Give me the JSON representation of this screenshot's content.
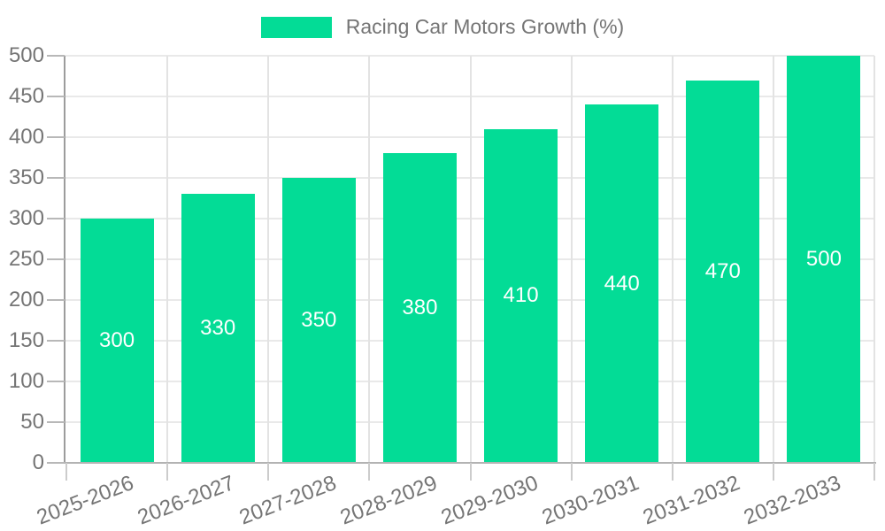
{
  "chart_data": {
    "type": "bar",
    "title": "Racing Car Motors Growth (%)",
    "categories": [
      "2025-2026",
      "2026-2027",
      "2027-2028",
      "2028-2029",
      "2029-2030",
      "2030-2031",
      "2031-2032",
      "2032-2033"
    ],
    "values": [
      300,
      330,
      350,
      380,
      410,
      440,
      470,
      500
    ],
    "series": [
      {
        "name": "Racing Car Motors Growth (%)",
        "values": [
          300,
          330,
          350,
          380,
          410,
          440,
          470,
          500
        ]
      }
    ],
    "xlabel": "",
    "ylabel": "",
    "ylim": [
      0,
      500
    ],
    "yticks": [
      0,
      50,
      100,
      150,
      200,
      250,
      300,
      350,
      400,
      450,
      500
    ],
    "grid": true,
    "legend_position": "top-center",
    "bar_labels_visible": true,
    "bar_label_position": "middle-of-bar",
    "colors": {
      "bar": "#03DC96",
      "bar_label": "#FFFFFF",
      "axis_text": "#757575",
      "legend_text": "#757575",
      "y_axis_line": "#9C9C9C",
      "x_axis_line": "#B3B3B3",
      "h_gridline": "#E9E9E9",
      "v_gridline": "#E3E3E3"
    }
  },
  "legend": {
    "label": "Racing Car Motors Growth (%)"
  }
}
